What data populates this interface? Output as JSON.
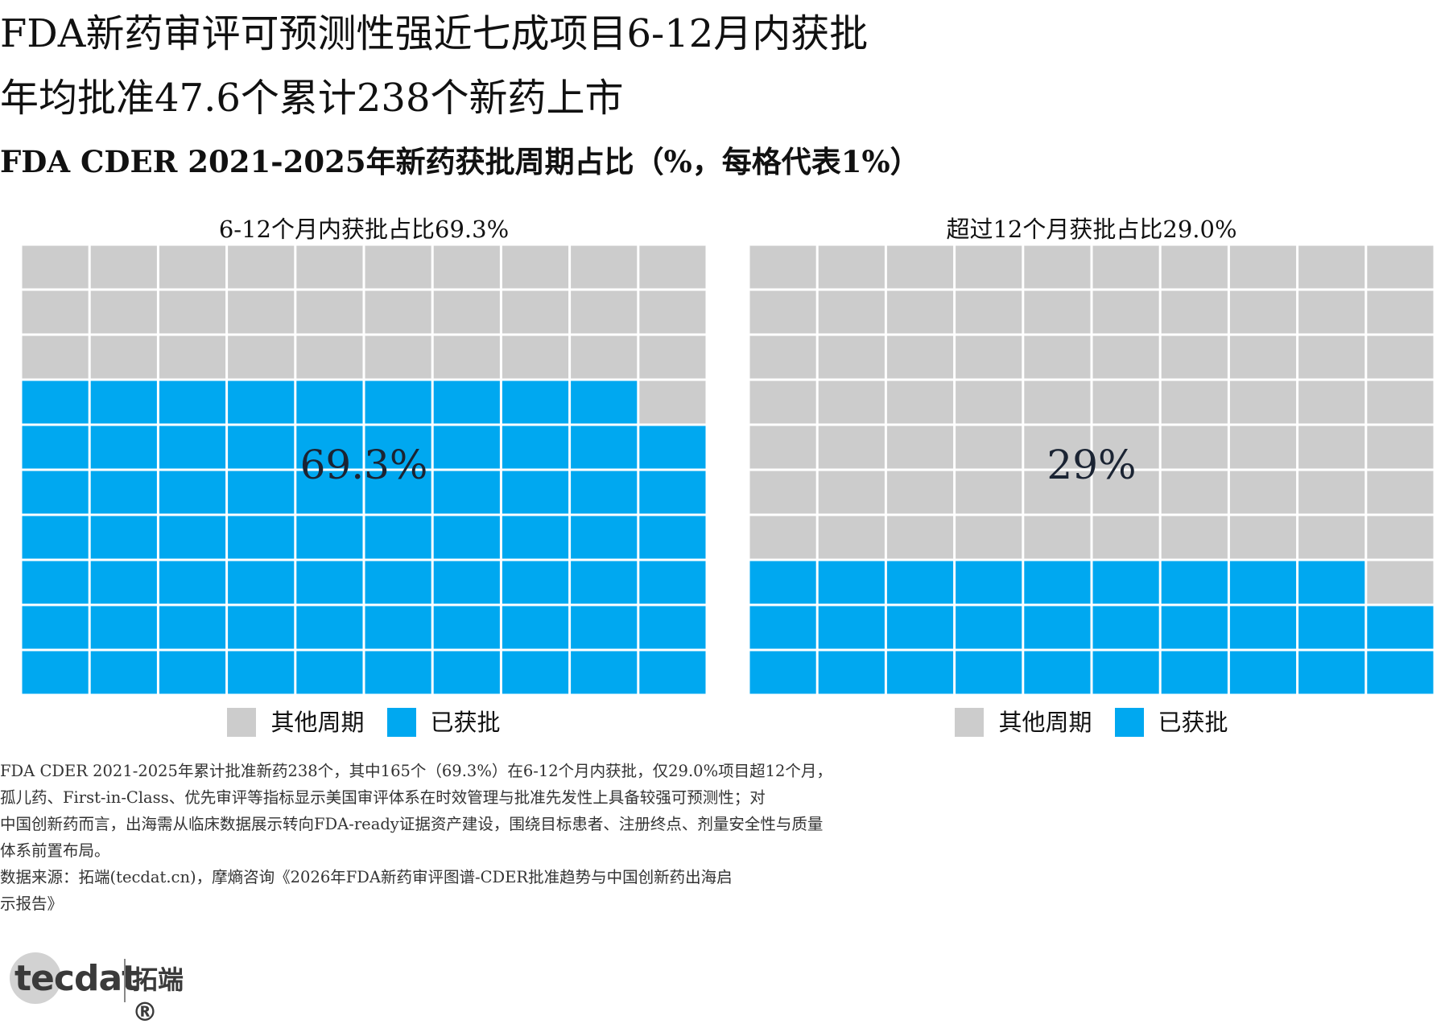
{
  "header": {
    "title_line1": "FDA新药审评可预测性强近七成项目6-12月内获批",
    "title_line2": "年均批准47.6个累计238个新药上市",
    "subtitle": "FDA CDER 2021-2025年新药获批周期占比（%，每格代表1%）"
  },
  "colors": {
    "approved": "#00a8f0",
    "other": "#cccccc",
    "grid_line": "#ffffff"
  },
  "chart_data": [
    {
      "type": "waffle",
      "title": "6-12个月内获批占比69.3%",
      "center_label": "69.3%",
      "value_percent": 69.3,
      "cells_filled": 69,
      "cells_total": 100,
      "legend": [
        "其他周期",
        "已获批"
      ]
    },
    {
      "type": "waffle",
      "title": "超过12个月获批占比29.0%",
      "center_label": "29%",
      "value_percent": 29.0,
      "cells_filled": 29,
      "cells_total": 100,
      "legend": [
        "其他周期",
        "已获批"
      ]
    }
  ],
  "notes": [
    "FDA CDER 2021-2025年累计批准新药238个，其中165个（69.3%）在6-12个月内获批，仅29.0%项目超12个月，",
    "孤儿药、First-in-Class、优先审评等指标显示美国审评体系在时效管理与批准先发性上具备较强可预测性；对",
    "中国创新药而言，出海需从临床数据展示转向FDA-ready证据资产建设，围绕目标患者、注册终点、剂量安全性与质量",
    "体系前置布局。",
    "数据来源：拓端(tecdat.cn)，摩熵咨询《2026年FDA新药审评图谱-CDER批准趋势与中国创新药出海启",
    "示报告》"
  ],
  "logo": {
    "wordmark": "tecdat",
    "chinese": "拓端®"
  }
}
